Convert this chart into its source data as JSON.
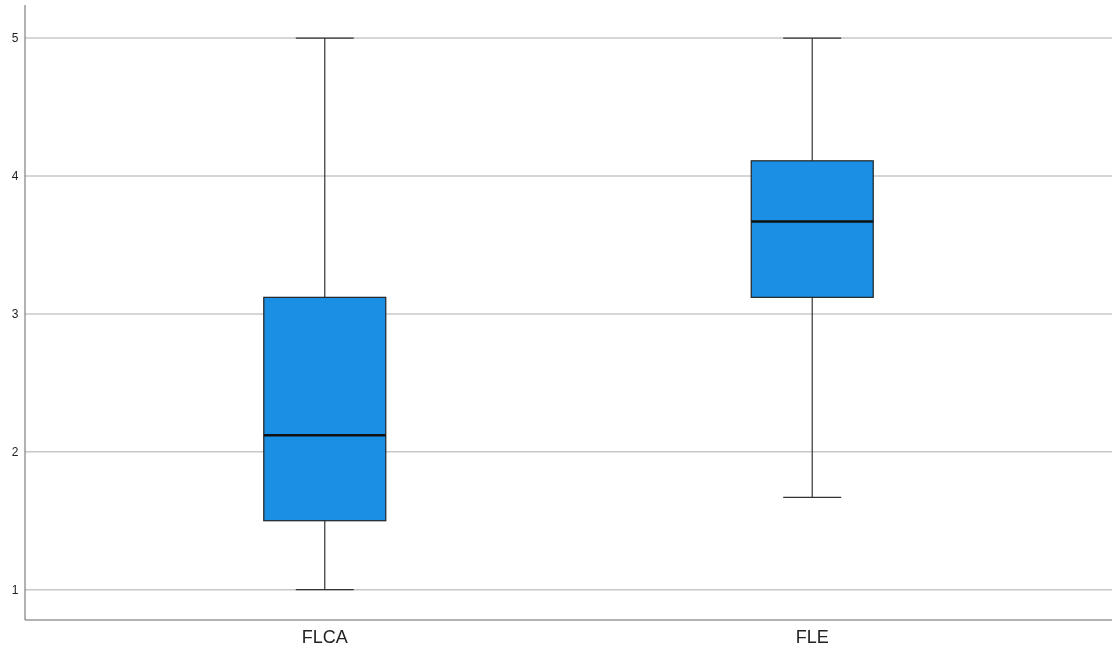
{
  "chart_data": {
    "type": "box",
    "categories": [
      "FLCA",
      "FLE"
    ],
    "color": "#1a8fe3",
    "boxes": [
      {
        "low": 1,
        "q1": 1.5,
        "median": 2.12,
        "q3": 3.12,
        "high": 5
      },
      {
        "low": 1.67,
        "q1": 3.12,
        "median": 3.67,
        "q3": 4.11,
        "high": 5
      }
    ],
    "ylim": [
      0.78,
      5.24
    ],
    "yticks": [
      1,
      2,
      3,
      4,
      5
    ],
    "grid": "y"
  }
}
